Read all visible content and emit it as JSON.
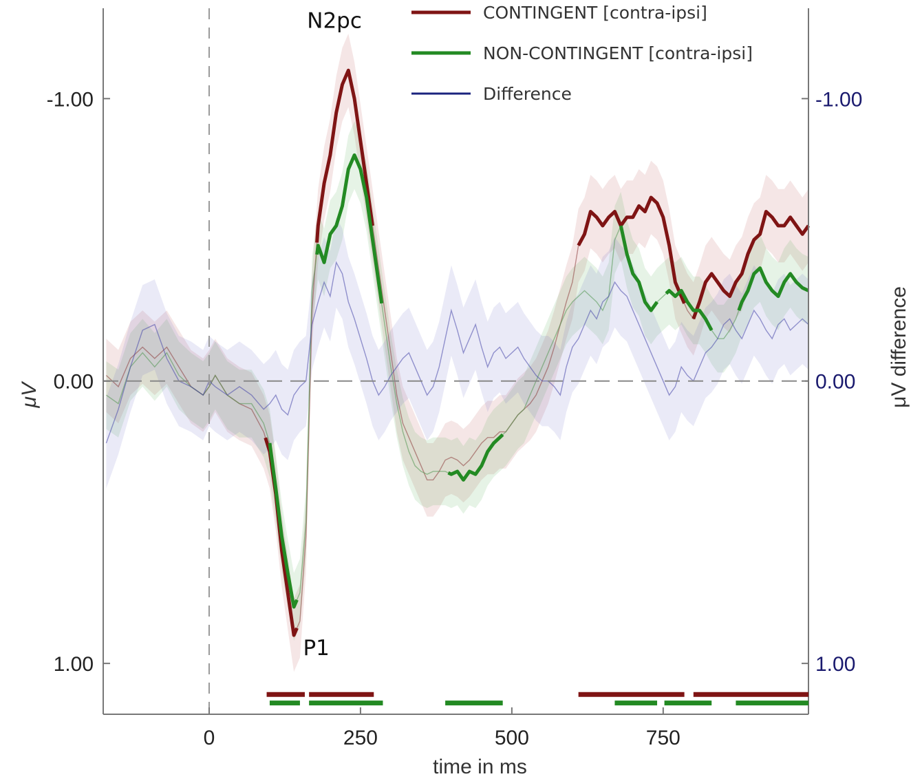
{
  "chart_data": {
    "type": "line",
    "title": "",
    "xlabel": "time in ms",
    "ylabel_left": "μV",
    "ylabel_right": "μV difference",
    "xlim": [
      -175,
      990
    ],
    "ylim": [
      1.18,
      -1.32
    ],
    "x_ticks": [
      0,
      250,
      500,
      750
    ],
    "x_tick_labels": [
      "0",
      "250",
      "500",
      "750"
    ],
    "y_ticks": [
      -1.0,
      0.0,
      1.0
    ],
    "y_tick_labels": [
      "-1.00",
      "0.00",
      "1.00"
    ],
    "y_tick_labels_right": [
      "-1.00",
      "0.00",
      "1.00"
    ],
    "inverted_y": true,
    "zero_line": "dashed",
    "onset_line": "dashed at 0 ms",
    "grid": false,
    "legend_position": "top-right",
    "colors": {
      "contingent": "#7f1414",
      "noncontingent": "#238a23",
      "difference": "#1a237e",
      "right_axis": "#1a1a6e"
    },
    "annotations": [
      {
        "text": "N2pc",
        "x": 207,
        "y": -1.25
      },
      {
        "text": "P1",
        "x": 177,
        "y": 0.97
      }
    ],
    "series": [
      {
        "name": "CONTINGENT [contra-ipsi]",
        "color": "#7f1414",
        "x": [
          -170,
          -150,
          -130,
          -110,
          -90,
          -70,
          -50,
          -30,
          -10,
          0,
          10,
          30,
          50,
          70,
          90,
          100,
          110,
          120,
          130,
          140,
          150,
          160,
          170,
          180,
          190,
          200,
          210,
          220,
          230,
          240,
          250,
          260,
          270,
          280,
          290,
          300,
          310,
          320,
          330,
          340,
          350,
          360,
          370,
          380,
          390,
          400,
          410,
          420,
          430,
          440,
          450,
          460,
          470,
          480,
          490,
          500,
          510,
          520,
          530,
          540,
          550,
          560,
          570,
          580,
          590,
          600,
          610,
          620,
          630,
          640,
          650,
          660,
          670,
          680,
          690,
          700,
          710,
          720,
          730,
          740,
          750,
          760,
          770,
          780,
          790,
          800,
          810,
          820,
          830,
          840,
          850,
          860,
          870,
          880,
          890,
          900,
          910,
          920,
          930,
          940,
          950,
          960,
          970,
          980,
          990
        ],
        "values": [
          -0.02,
          0.02,
          -0.08,
          -0.12,
          -0.08,
          -0.12,
          -0.05,
          0.02,
          0.05,
          0.02,
          -0.02,
          0.05,
          0.08,
          0.1,
          0.18,
          0.25,
          0.4,
          0.6,
          0.75,
          0.9,
          0.85,
          0.55,
          -0.25,
          -0.55,
          -0.7,
          -0.8,
          -0.95,
          -1.05,
          -1.1,
          -1.0,
          -0.85,
          -0.7,
          -0.55,
          -0.4,
          -0.25,
          -0.1,
          0.05,
          0.15,
          0.2,
          0.25,
          0.3,
          0.35,
          0.35,
          0.32,
          0.28,
          0.27,
          0.28,
          0.3,
          0.28,
          0.25,
          0.22,
          0.2,
          0.2,
          0.18,
          0.18,
          0.15,
          0.12,
          0.1,
          0.08,
          0.05,
          0.0,
          -0.05,
          -0.12,
          -0.2,
          -0.28,
          -0.35,
          -0.48,
          -0.52,
          -0.6,
          -0.58,
          -0.55,
          -0.58,
          -0.6,
          -0.55,
          -0.58,
          -0.58,
          -0.62,
          -0.6,
          -0.65,
          -0.63,
          -0.58,
          -0.48,
          -0.35,
          -0.3,
          -0.25,
          -0.22,
          -0.28,
          -0.35,
          -0.38,
          -0.35,
          -0.32,
          -0.3,
          -0.35,
          -0.38,
          -0.45,
          -0.5,
          -0.52,
          -0.6,
          -0.58,
          -0.55,
          -0.55,
          -0.58,
          -0.55,
          -0.52,
          -0.55
        ]
      },
      {
        "name": "NON-CONTINGENT [contra-ipsi]",
        "color": "#238a23",
        "x": [
          -170,
          -150,
          -130,
          -110,
          -90,
          -70,
          -50,
          -30,
          -10,
          0,
          10,
          30,
          50,
          70,
          90,
          100,
          110,
          120,
          130,
          140,
          150,
          160,
          170,
          180,
          190,
          200,
          210,
          220,
          230,
          240,
          250,
          260,
          270,
          280,
          290,
          300,
          310,
          320,
          330,
          340,
          350,
          360,
          370,
          380,
          390,
          400,
          410,
          420,
          430,
          440,
          450,
          460,
          470,
          480,
          490,
          500,
          510,
          520,
          530,
          540,
          550,
          560,
          570,
          580,
          590,
          600,
          610,
          620,
          630,
          640,
          650,
          660,
          670,
          680,
          690,
          700,
          710,
          720,
          730,
          740,
          750,
          760,
          770,
          780,
          790,
          800,
          810,
          820,
          830,
          840,
          850,
          860,
          870,
          880,
          890,
          900,
          910,
          920,
          930,
          940,
          950,
          960,
          970,
          980,
          990
        ],
        "values": [
          0.05,
          0.08,
          -0.05,
          -0.1,
          -0.05,
          -0.1,
          -0.02,
          0.02,
          0.05,
          0.02,
          -0.02,
          0.05,
          0.08,
          0.08,
          0.15,
          0.22,
          0.38,
          0.55,
          0.68,
          0.8,
          0.75,
          0.5,
          -0.32,
          -0.48,
          -0.42,
          -0.52,
          -0.55,
          -0.62,
          -0.75,
          -0.8,
          -0.75,
          -0.65,
          -0.5,
          -0.35,
          -0.2,
          -0.05,
          0.08,
          0.18,
          0.25,
          0.3,
          0.32,
          0.33,
          0.32,
          0.32,
          0.32,
          0.33,
          0.32,
          0.35,
          0.32,
          0.33,
          0.3,
          0.25,
          0.22,
          0.2,
          0.18,
          0.15,
          0.12,
          0.1,
          0.05,
          0.0,
          -0.05,
          -0.1,
          -0.15,
          -0.2,
          -0.25,
          -0.28,
          -0.3,
          -0.32,
          -0.3,
          -0.28,
          -0.25,
          -0.3,
          -0.5,
          -0.55,
          -0.45,
          -0.38,
          -0.35,
          -0.28,
          -0.25,
          -0.28,
          -0.3,
          -0.32,
          -0.3,
          -0.32,
          -0.28,
          -0.25,
          -0.25,
          -0.22,
          -0.18,
          -0.15,
          -0.15,
          -0.18,
          -0.22,
          -0.28,
          -0.32,
          -0.38,
          -0.4,
          -0.35,
          -0.32,
          -0.3,
          -0.35,
          -0.38,
          -0.35,
          -0.33,
          -0.32
        ]
      },
      {
        "name": "Difference",
        "color": "#1a237e",
        "x": [
          -170,
          -150,
          -130,
          -110,
          -90,
          -70,
          -50,
          -30,
          -10,
          0,
          10,
          30,
          50,
          70,
          90,
          100,
          110,
          120,
          130,
          140,
          150,
          160,
          170,
          180,
          190,
          200,
          210,
          220,
          230,
          240,
          250,
          260,
          270,
          280,
          290,
          300,
          310,
          320,
          330,
          340,
          350,
          360,
          370,
          380,
          390,
          400,
          410,
          420,
          430,
          440,
          450,
          460,
          470,
          480,
          490,
          500,
          510,
          520,
          530,
          540,
          550,
          560,
          570,
          580,
          590,
          600,
          610,
          620,
          630,
          640,
          650,
          660,
          670,
          680,
          690,
          700,
          710,
          720,
          730,
          740,
          750,
          760,
          770,
          780,
          790,
          800,
          810,
          820,
          830,
          840,
          850,
          860,
          870,
          880,
          890,
          900,
          910,
          920,
          930,
          940,
          950,
          960,
          970,
          980,
          990
        ],
        "values": [
          0.22,
          0.1,
          -0.05,
          -0.18,
          -0.2,
          -0.08,
          0.0,
          0.02,
          0.05,
          0.0,
          0.02,
          0.05,
          0.02,
          0.05,
          0.1,
          0.08,
          0.05,
          0.1,
          0.12,
          0.05,
          0.02,
          0.0,
          -0.2,
          -0.28,
          -0.35,
          -0.3,
          -0.42,
          -0.38,
          -0.28,
          -0.22,
          -0.15,
          -0.08,
          0.0,
          0.05,
          0.02,
          -0.02,
          -0.05,
          -0.08,
          -0.1,
          -0.05,
          0.0,
          0.05,
          0.02,
          -0.05,
          -0.15,
          -0.25,
          -0.18,
          -0.1,
          -0.15,
          -0.2,
          -0.12,
          -0.05,
          -0.1,
          -0.12,
          -0.08,
          -0.1,
          -0.12,
          -0.08,
          -0.05,
          -0.02,
          0.0,
          0.0,
          0.02,
          0.05,
          -0.05,
          -0.12,
          -0.15,
          -0.2,
          -0.25,
          -0.22,
          -0.28,
          -0.3,
          -0.35,
          -0.32,
          -0.3,
          -0.25,
          -0.2,
          -0.15,
          -0.1,
          -0.05,
          0.0,
          0.05,
          0.02,
          -0.05,
          -0.02,
          0.0,
          -0.05,
          -0.1,
          -0.12,
          -0.15,
          -0.2,
          -0.22,
          -0.18,
          -0.15,
          -0.2,
          -0.25,
          -0.22,
          -0.18,
          -0.15,
          -0.2,
          -0.22,
          -0.18,
          -0.2,
          -0.22,
          -0.2
        ]
      }
    ],
    "bands": {
      "contingent": 0.13,
      "noncontingent": 0.12,
      "difference": 0.16
    },
    "highlight_segments": {
      "contingent": [
        [
          93,
          145
        ],
        [
          178,
          270
        ],
        [
          610,
          785
        ],
        [
          800,
          990
        ]
      ],
      "noncontingent": [
        [
          100,
          145
        ],
        [
          178,
          285
        ],
        [
          395,
          485
        ],
        [
          680,
          740
        ],
        [
          755,
          830
        ],
        [
          875,
          990
        ]
      ]
    },
    "significance_bars": {
      "contingent_y": 1.11,
      "noncontingent_y": 1.14,
      "contingent": [
        [
          95,
          158
        ],
        [
          165,
          272
        ],
        [
          610,
          785
        ],
        [
          800,
          990
        ]
      ],
      "noncontingent": [
        [
          100,
          150
        ],
        [
          165,
          287
        ],
        [
          390,
          485
        ],
        [
          670,
          740
        ],
        [
          752,
          830
        ],
        [
          870,
          990
        ]
      ]
    }
  }
}
